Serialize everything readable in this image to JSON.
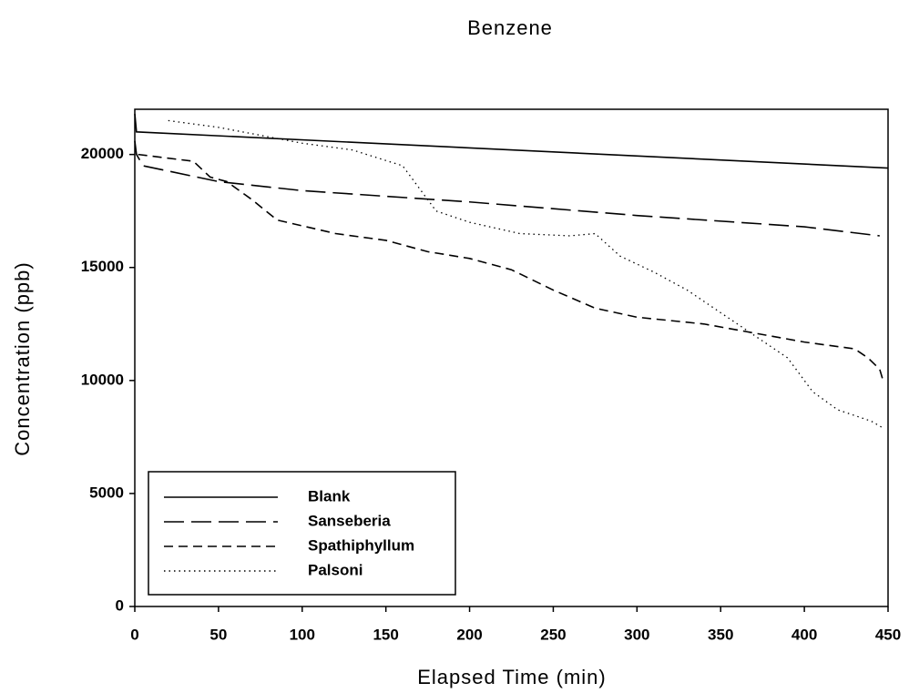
{
  "chart_data": {
    "type": "line",
    "title": "Benzene",
    "x_label": "Elapsed Time (min)",
    "y_label": "Concentration (ppb)",
    "xlim": [
      0,
      450
    ],
    "xticks": [
      0,
      50,
      100,
      150,
      200,
      250,
      300,
      350,
      400,
      450
    ],
    "ylim": [
      0,
      22000
    ],
    "yticks": [
      0,
      5000,
      10000,
      15000,
      20000
    ],
    "grid": false,
    "legend": "lower left",
    "series": [
      {
        "name": "Blank",
        "color": "#000000",
        "line_style": "solid",
        "x": [
          0,
          1,
          450
        ],
        "values": [
          21800,
          21000,
          19400
        ]
      },
      {
        "name": "Sanseberia",
        "color": "#000000",
        "line_style": "long-dash",
        "x": [
          0,
          1,
          5,
          50,
          100,
          200,
          300,
          400,
          445
        ],
        "values": [
          20600,
          20000,
          19500,
          18800,
          18400,
          17900,
          17300,
          16800,
          16400
        ]
      },
      {
        "name": "Spathiphyllum",
        "color": "#000000",
        "line_style": "dash",
        "x": [
          2,
          35,
          45,
          55,
          70,
          85,
          120,
          150,
          175,
          200,
          225,
          250,
          275,
          300,
          340,
          370,
          400,
          430,
          438,
          445,
          447
        ],
        "values": [
          20000,
          19700,
          19000,
          18800,
          18000,
          17100,
          16500,
          16200,
          15700,
          15400,
          14900,
          14000,
          13200,
          12800,
          12500,
          12100,
          11700,
          11400,
          11000,
          10500,
          10000
        ]
      },
      {
        "name": "Palsoni",
        "color": "#000000",
        "line_style": "dot",
        "x": [
          20,
          50,
          100,
          130,
          160,
          170,
          180,
          200,
          230,
          260,
          275,
          290,
          310,
          330,
          350,
          370,
          390,
          405,
          420,
          440,
          447
        ],
        "values": [
          21500,
          21200,
          20500,
          20200,
          19500,
          18500,
          17500,
          17000,
          16500,
          16400,
          16500,
          15500,
          14800,
          14000,
          13000,
          12000,
          11000,
          9500,
          8700,
          8200,
          7900
        ]
      }
    ]
  }
}
